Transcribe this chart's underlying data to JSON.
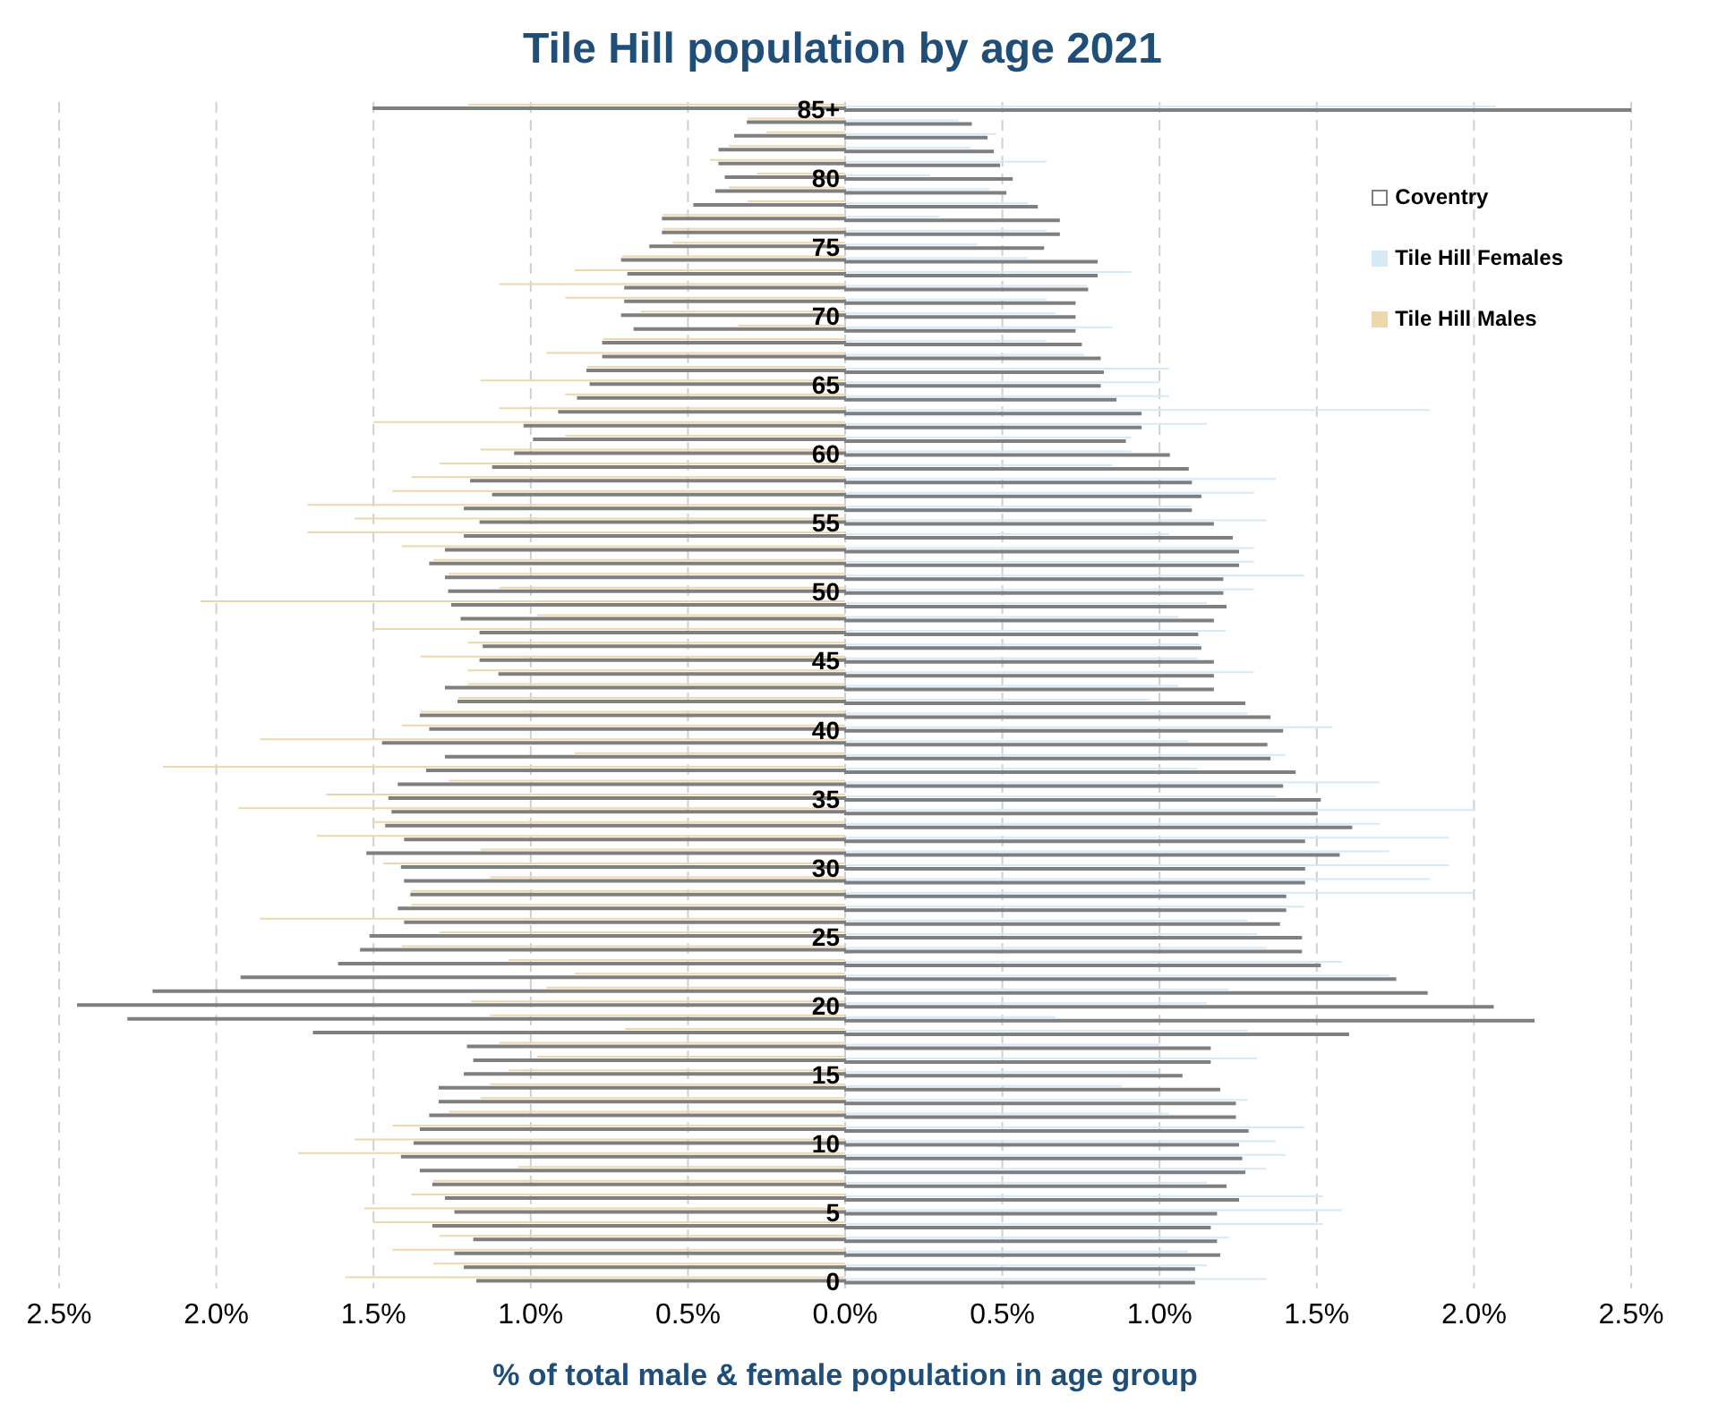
{
  "chart_data": {
    "type": "bar",
    "orientation": "horizontal",
    "title": "Tile Hill population by age 2021",
    "xlabel": "% of total male & female population in age group",
    "categories": [
      "85+",
      null,
      null,
      null,
      null,
      "80",
      null,
      null,
      null,
      null,
      "75",
      null,
      null,
      null,
      null,
      "70",
      null,
      null,
      null,
      null,
      "65",
      null,
      null,
      null,
      null,
      "60",
      null,
      null,
      null,
      null,
      "55",
      null,
      null,
      null,
      null,
      "50",
      null,
      null,
      null,
      null,
      "45",
      null,
      null,
      null,
      null,
      "40",
      null,
      null,
      null,
      null,
      "35",
      null,
      null,
      null,
      null,
      "30",
      null,
      null,
      null,
      null,
      "25",
      null,
      null,
      null,
      null,
      "20",
      null,
      null,
      null,
      null,
      "15",
      null,
      null,
      null,
      null,
      "10",
      null,
      null,
      null,
      null,
      "5",
      null,
      null,
      null,
      null,
      "0"
    ],
    "series": [
      {
        "name": "Tile Hill Males",
        "color": "#eed7ad",
        "values": [
          -1.2,
          -0.31,
          -0.25,
          -0.37,
          -0.43,
          -0.28,
          -0.37,
          -0.31,
          -0.58,
          -0.58,
          -0.55,
          -0.71,
          -0.86,
          -1.1,
          -0.89,
          -0.65,
          -0.34,
          -0.77,
          -0.95,
          -0.82,
          -1.16,
          -0.89,
          -1.1,
          -1.5,
          -0.89,
          -1.16,
          -1.29,
          -1.38,
          -1.44,
          -1.71,
          -1.56,
          -1.71,
          -1.41,
          -1.31,
          -1.26,
          -1.1,
          -2.05,
          -0.98,
          -1.5,
          -1.2,
          -1.35,
          -1.2,
          -1.2,
          -1.23,
          -1.35,
          -1.41,
          -1.86,
          -0.86,
          -2.17,
          -1.26,
          -1.65,
          -1.93,
          -1.5,
          -1.68,
          -1.16,
          -1.47,
          -1.13,
          -1.38,
          -1.38,
          -1.86,
          -1.29,
          -1.41,
          -1.07,
          -0.86,
          -0.95,
          -1.19,
          -1.13,
          -0.7,
          -1.1,
          -0.98,
          -1.07,
          -1.13,
          -1.16,
          -1.26,
          -1.44,
          -1.56,
          -1.74,
          -1.04,
          -1.31,
          -1.38,
          -1.53,
          -1.5,
          -1.29,
          -1.44,
          -1.31,
          -1.59
        ]
      },
      {
        "name": "Tile Hill Females",
        "color": "#d6e9f6",
        "values": [
          2.07,
          0.36,
          0.48,
          0.4,
          0.64,
          0.27,
          0.46,
          0.58,
          0.3,
          0.64,
          0.42,
          0.58,
          0.91,
          0.77,
          0.64,
          0.67,
          0.85,
          0.64,
          0.76,
          1.03,
          1.0,
          1.03,
          1.86,
          1.15,
          0.91,
          0.91,
          0.85,
          1.37,
          1.3,
          1.1,
          1.34,
          1.03,
          1.3,
          1.3,
          1.46,
          1.3,
          1.15,
          1.06,
          1.21,
          1.13,
          1.12,
          1.3,
          1.06,
          0.97,
          1.28,
          1.55,
          1.09,
          1.4,
          1.12,
          1.7,
          1.37,
          2.0,
          1.7,
          1.92,
          1.73,
          1.92,
          1.86,
          2.0,
          1.46,
          1.28,
          1.31,
          1.34,
          1.58,
          1.73,
          1.22,
          1.15,
          0.67,
          1.28,
          1.0,
          1.31,
          1.0,
          0.88,
          1.28,
          1.03,
          1.46,
          1.37,
          1.4,
          1.34,
          1.15,
          1.52,
          1.58,
          1.52,
          1.22,
          1.09,
          1.15,
          1.34
        ]
      },
      {
        "color": "#7f7f7f",
        "values": [
          -1.5,
          -0.31,
          -0.35,
          -0.4,
          -0.4,
          -0.38,
          -0.41,
          -0.48,
          -0.58,
          -0.58,
          -0.62,
          -0.71,
          -0.69,
          -0.7,
          -0.7,
          -0.71,
          -0.67,
          -0.77,
          -0.77,
          -0.82,
          -0.81,
          -0.85,
          -0.91,
          -1.02,
          -0.99,
          -1.05,
          -1.12,
          -1.19,
          -1.12,
          -1.21,
          -1.16,
          -1.21,
          -1.27,
          -1.32,
          -1.27,
          -1.26,
          -1.25,
          -1.22,
          -1.16,
          -1.15,
          -1.16,
          -1.1,
          -1.27,
          -1.23,
          -1.35,
          -1.32,
          -1.47,
          -1.27,
          -1.33,
          -1.42,
          -1.45,
          -1.44,
          -1.46,
          -1.4,
          -1.52,
          -1.41,
          -1.4,
          -1.38,
          -1.42,
          -1.4,
          -1.51,
          -1.54,
          -1.61,
          -1.92,
          -2.2,
          -2.44,
          -2.28,
          -1.69,
          -1.2,
          -1.18,
          -1.21,
          -1.29,
          -1.29,
          -1.32,
          -1.35,
          -1.37,
          -1.41,
          -1.35,
          -1.31,
          -1.27,
          -1.24,
          -1.31,
          -1.18,
          -1.24,
          -1.21,
          -1.17
        ]
      },
      {
        "name": "Coventry",
        "color": "#7f7f7f",
        "values": [
          2.5,
          0.4,
          0.45,
          0.47,
          0.49,
          0.53,
          0.51,
          0.61,
          0.68,
          0.68,
          0.63,
          0.8,
          0.8,
          0.77,
          0.73,
          0.73,
          0.73,
          0.75,
          0.81,
          0.82,
          0.81,
          0.86,
          0.94,
          0.94,
          0.89,
          1.03,
          1.09,
          1.1,
          1.13,
          1.1,
          1.17,
          1.23,
          1.25,
          1.25,
          1.2,
          1.2,
          1.21,
          1.17,
          1.12,
          1.13,
          1.17,
          1.17,
          1.17,
          1.27,
          1.35,
          1.39,
          1.34,
          1.35,
          1.43,
          1.39,
          1.51,
          1.5,
          1.61,
          1.46,
          1.57,
          1.46,
          1.46,
          1.4,
          1.4,
          1.38,
          1.45,
          1.45,
          1.51,
          1.75,
          1.85,
          2.06,
          2.19,
          1.6,
          1.16,
          1.16,
          1.07,
          1.19,
          1.24,
          1.24,
          1.28,
          1.25,
          1.26,
          1.27,
          1.21,
          1.25,
          1.18,
          1.16,
          1.18,
          1.19,
          1.11,
          1.11
        ]
      }
    ],
    "xlim": [
      -2.5,
      2.5
    ],
    "xticks": [
      {
        "value": -2.5,
        "label": "2.5%"
      },
      {
        "value": -2,
        "label": "2.0%"
      },
      {
        "value": -1.5,
        "label": "1.5%"
      },
      {
        "value": -1,
        "label": "1.0%"
      },
      {
        "value": -0.5,
        "label": "0.5%"
      },
      {
        "value": 0,
        "label": "0.0%"
      },
      {
        "value": 0.5,
        "label": "0.5%"
      },
      {
        "value": 1,
        "label": "1.0%"
      },
      {
        "value": 1.5,
        "label": "1.5%"
      },
      {
        "value": 2,
        "label": "2.0%"
      },
      {
        "value": 2.5,
        "label": "2.5%"
      }
    ],
    "grid": "x",
    "legend": "top right"
  }
}
